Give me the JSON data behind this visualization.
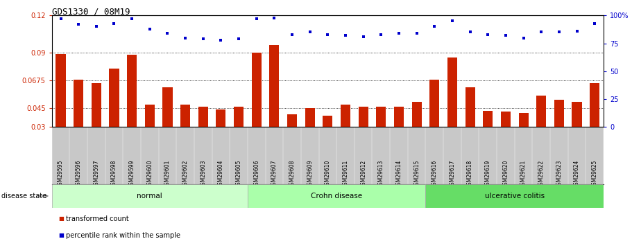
{
  "title": "GDS1330 / 08M19",
  "samples": [
    "GSM29595",
    "GSM29596",
    "GSM29597",
    "GSM29598",
    "GSM29599",
    "GSM29600",
    "GSM29601",
    "GSM29602",
    "GSM29603",
    "GSM29604",
    "GSM29605",
    "GSM29606",
    "GSM29607",
    "GSM29608",
    "GSM29609",
    "GSM29610",
    "GSM29611",
    "GSM29612",
    "GSM29613",
    "GSM29614",
    "GSM29615",
    "GSM29616",
    "GSM29617",
    "GSM29618",
    "GSM29619",
    "GSM29620",
    "GSM29621",
    "GSM29622",
    "GSM29623",
    "GSM29624",
    "GSM29625"
  ],
  "bar_values": [
    0.089,
    0.068,
    0.065,
    0.077,
    0.088,
    0.048,
    0.062,
    0.048,
    0.046,
    0.044,
    0.046,
    0.09,
    0.096,
    0.04,
    0.045,
    0.039,
    0.048,
    0.046,
    0.046,
    0.046,
    0.05,
    0.068,
    0.086,
    0.062,
    0.043,
    0.042,
    0.041,
    0.055,
    0.052,
    0.05,
    0.065
  ],
  "percentile_values": [
    97,
    92,
    90,
    93,
    97,
    88,
    84,
    80,
    79,
    78,
    79,
    97,
    98,
    83,
    85,
    83,
    82,
    81,
    83,
    84,
    84,
    90,
    95,
    85,
    83,
    82,
    80,
    85,
    85,
    86,
    93
  ],
  "groups": [
    {
      "label": "normal",
      "start": 0,
      "end": 10,
      "color": "#ccffcc"
    },
    {
      "label": "Crohn disease",
      "start": 11,
      "end": 20,
      "color": "#aaffaa"
    },
    {
      "label": "ulcerative colitis",
      "start": 21,
      "end": 30,
      "color": "#66dd66"
    }
  ],
  "bar_color": "#cc2200",
  "dot_color": "#0000cc",
  "left_ylim": [
    0.03,
    0.12
  ],
  "right_ylim": [
    0,
    100
  ],
  "left_yticks": [
    0.03,
    0.045,
    0.0675,
    0.09,
    0.12
  ],
  "left_yticklabels": [
    "0.03",
    "0.045",
    "0.0675",
    "0.09",
    "0.12"
  ],
  "right_yticks": [
    0,
    25,
    50,
    75,
    100
  ],
  "right_yticklabels": [
    "0",
    "25",
    "50",
    "75",
    "100%"
  ],
  "hgrid_values": [
    0.045,
    0.0675,
    0.09
  ],
  "legend_bar_label": "transformed count",
  "legend_dot_label": "percentile rank within the sample",
  "disease_state_label": "disease state",
  "tick_bg_color": "#c8c8c8",
  "plot_bg": "#ffffff"
}
